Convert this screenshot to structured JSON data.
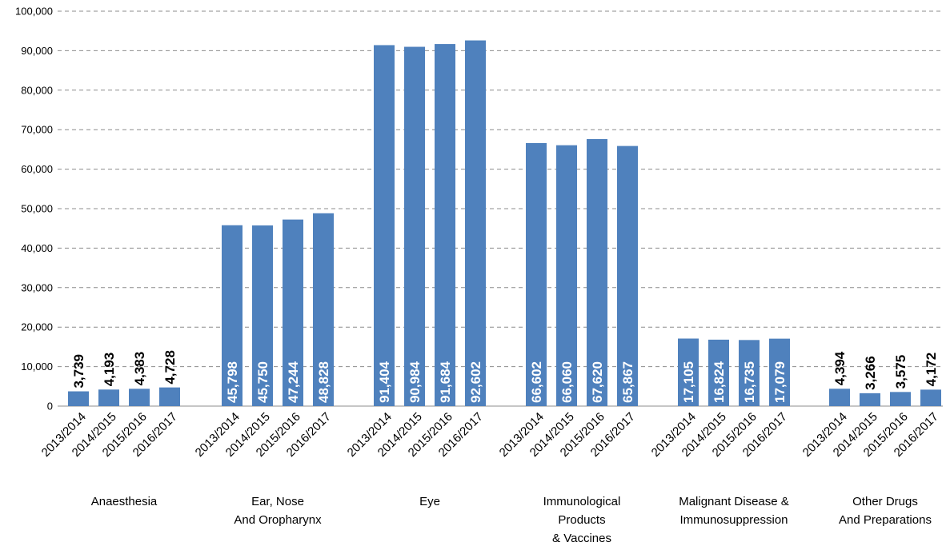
{
  "chart_data": {
    "type": "bar",
    "ylim": [
      0,
      100000
    ],
    "y_ticks": [
      "0",
      "10,000",
      "20,000",
      "30,000",
      "40,000",
      "50,000",
      "60,000",
      "70,000",
      "80,000",
      "90,000",
      "100,000"
    ],
    "y_tick_values": [
      0,
      10000,
      20000,
      30000,
      40000,
      50000,
      60000,
      70000,
      80000,
      90000,
      100000
    ],
    "grid": true,
    "bar_color": "#4f81bd",
    "label_color_inside": "#ffffff",
    "label_color_outside": "#000000",
    "periods": [
      "2013/2014",
      "2014/2015",
      "2015/2016",
      "2016/2017"
    ],
    "groups": [
      {
        "label": [
          "Anaesthesia"
        ],
        "values": [
          3739,
          4193,
          4383,
          4728
        ],
        "labels": [
          "3,739",
          "4,193",
          "4,383",
          "4,728"
        ]
      },
      {
        "label": [
          "Ear, Nose",
          "And Oropharynx"
        ],
        "values": [
          45798,
          45750,
          47244,
          48828
        ],
        "labels": [
          "45,798",
          "45,750",
          "47,244",
          "48,828"
        ]
      },
      {
        "label": [
          "Eye"
        ],
        "values": [
          91404,
          90984,
          91684,
          92602
        ],
        "labels": [
          "91,404",
          "90,984",
          "91,684",
          "92,602"
        ]
      },
      {
        "label": [
          "Immunological",
          "Products",
          "& Vaccines"
        ],
        "values": [
          66602,
          66060,
          67620,
          65867
        ],
        "labels": [
          "66,602",
          "66,060",
          "67,620",
          "65,867"
        ]
      },
      {
        "label": [
          "Malignant Disease &",
          "Immunosuppression"
        ],
        "values": [
          17105,
          16824,
          16735,
          17079
        ],
        "labels": [
          "17,105",
          "16,824",
          "16,735",
          "17,079"
        ]
      },
      {
        "label": [
          "Other Drugs",
          "And Preparations"
        ],
        "values": [
          4394,
          3266,
          3575,
          4172
        ],
        "labels": [
          "4,394",
          "3,266",
          "3,575",
          "4,172"
        ]
      }
    ]
  }
}
